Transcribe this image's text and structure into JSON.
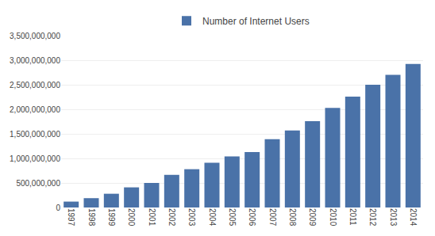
{
  "chart_data": {
    "type": "bar",
    "categories": [
      "1997",
      "1998",
      "1999",
      "2000",
      "2001",
      "2002",
      "2003",
      "2004",
      "2005",
      "2006",
      "2007",
      "2008",
      "2009",
      "2010",
      "2011",
      "2012",
      "2013",
      "2014"
    ],
    "series": [
      {
        "name": "Number of Internet Users",
        "color": "#4a72a8",
        "values": [
          120000000,
          190000000,
          280000000,
          410000000,
          500000000,
          665000000,
          780000000,
          910000000,
          1040000000,
          1130000000,
          1390000000,
          1570000000,
          1760000000,
          2030000000,
          2260000000,
          2500000000,
          2700000000,
          2925000000
        ]
      }
    ],
    "ylim": [
      0,
      3500000000
    ],
    "yticks": [
      0,
      {
        "value": 500000000,
        "label": "500,000,000"
      },
      {
        "value": 1000000000,
        "label": "1,000,000,000"
      },
      {
        "value": 1500000000,
        "label": "1,500,000,000"
      },
      {
        "value": 2000000000,
        "label": "2,000,000,000"
      },
      {
        "value": 2500000000,
        "label": "2,500,000,000"
      },
      {
        "value": 3000000000,
        "label": "3,000,000,000"
      },
      {
        "value": 3500000000,
        "label": "3,500,000,000"
      }
    ],
    "grid": true,
    "legend": "top"
  }
}
